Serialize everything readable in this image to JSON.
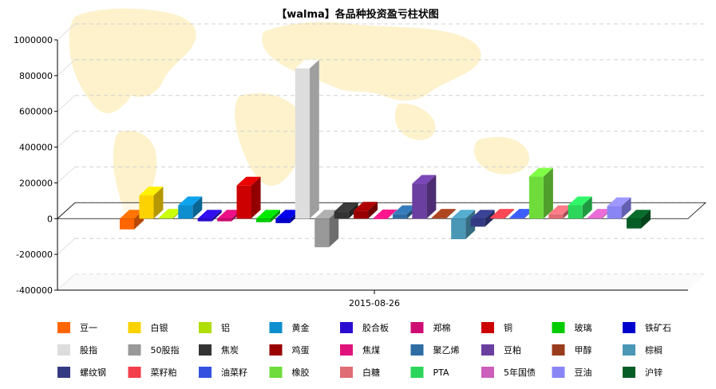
{
  "chart_data": {
    "type": "bar",
    "title": "【walma】各品种投资盈亏柱状图",
    "xlabel": "",
    "ylabel": "",
    "categories": [
      "2015-08-26"
    ],
    "ylim": [
      -400000,
      1000000
    ],
    "yticks": [
      1000000,
      800000,
      600000,
      400000,
      200000,
      0,
      -200000,
      -400000
    ],
    "grid": true,
    "legend_position": "bottom",
    "series": [
      {
        "name": "豆一",
        "color": "#ff6600",
        "value": -60000
      },
      {
        "name": "白银",
        "color": "#fcd202",
        "value": 130000
      },
      {
        "name": "铝",
        "color": "#b0de09",
        "value": 5000
      },
      {
        "name": "黄金",
        "color": "#0d8ecf",
        "value": 75000
      },
      {
        "name": "胶合板",
        "color": "#2a0cd0",
        "value": -15000
      },
      {
        "name": "郑棉",
        "color": "#cd0d74",
        "value": -15000
      },
      {
        "name": "铜",
        "color": "#cc0000",
        "value": 185000
      },
      {
        "name": "玻璃",
        "color": "#00cc00",
        "value": -20000
      },
      {
        "name": "铁矿石",
        "color": "#0000cc",
        "value": -25000
      },
      {
        "name": "股指",
        "color": "#dddddd",
        "value": 840000
      },
      {
        "name": "50股指",
        "color": "#999999",
        "value": -160000
      },
      {
        "name": "焦炭",
        "color": "#333333",
        "value": 40000
      },
      {
        "name": "鸡蛋",
        "color": "#990000",
        "value": 45000
      },
      {
        "name": "焦煤",
        "color": "#e0137b",
        "value": 2000
      },
      {
        "name": "聚乙烯",
        "color": "#2e6ca4",
        "value": 25000
      },
      {
        "name": "豆粕",
        "color": "#6b3fa0",
        "value": 195000
      },
      {
        "name": "甲醇",
        "color": "#993c1d",
        "value": 5000
      },
      {
        "name": "棕榈",
        "color": "#4a96b5",
        "value": -115000
      },
      {
        "name": "螺纹钢",
        "color": "#333a82",
        "value": -45000
      },
      {
        "name": "菜籽粕",
        "color": "#f33e4b",
        "value": 5000
      },
      {
        "name": "油菜籽",
        "color": "#3451e0",
        "value": 5000
      },
      {
        "name": "橡胶",
        "color": "#6fdc3c",
        "value": 235000
      },
      {
        "name": "白糖",
        "color": "#e06c75",
        "value": 25000
      },
      {
        "name": "PTA",
        "color": "#2bd65a",
        "value": 75000
      },
      {
        "name": "5年国债",
        "color": "#cc5fbb",
        "value": 5000
      },
      {
        "name": "豆油",
        "color": "#8a85f5",
        "value": 70000
      },
      {
        "name": "沪锌",
        "color": "#065e26",
        "value": -55000
      }
    ]
  }
}
